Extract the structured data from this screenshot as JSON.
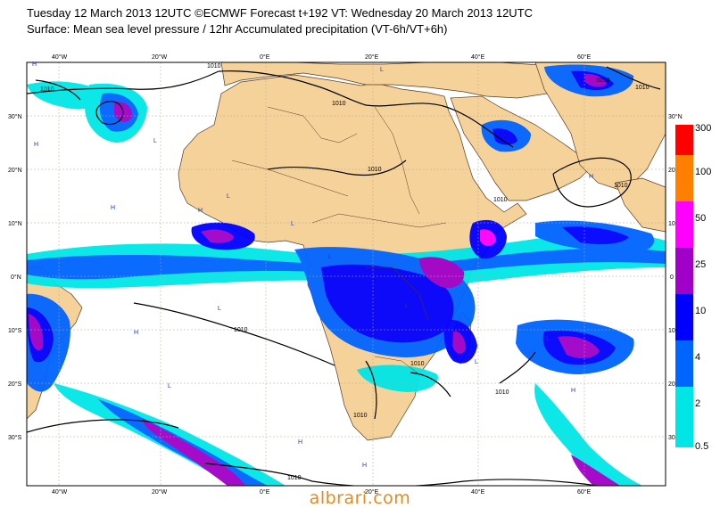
{
  "header": {
    "title": "Tuesday 12 March 2013 12UTC ©ECMWF Forecast t+192 VT: Wednesday 20 March 2013 12UTC",
    "subtitle": "Surface: Mean sea level pressure / 12hr Accumulated precipitation (VT-6h/VT+6h)"
  },
  "map": {
    "longitude_labels": [
      "40°W",
      "20°W",
      "0°E",
      "20°E",
      "40°E",
      "60°E"
    ],
    "latitude_labels_left": [
      "30°N",
      "20°N",
      "10°N",
      "0°N",
      "10°S",
      "20°S",
      "30°S"
    ],
    "latitude_labels_right": [
      "30°N",
      "20",
      "10",
      "0",
      "10",
      "20",
      "30"
    ],
    "isobar_label": "1010",
    "low_marker": "L",
    "high_marker": "H",
    "colors": {
      "land": "#f5d29a",
      "ocean": "#ffffff",
      "isobar": "#000000",
      "border": "#5a3a20"
    }
  },
  "colorbar": {
    "levels": [
      "300",
      "100",
      "50",
      "25",
      "10",
      "4",
      "2",
      "0.5"
    ],
    "colors": [
      "#ff0000",
      "#ff8000",
      "#ff00ff",
      "#a000c8",
      "#0000ff",
      "#0064ff",
      "#00e6e6"
    ]
  },
  "watermark": "albrari.com"
}
